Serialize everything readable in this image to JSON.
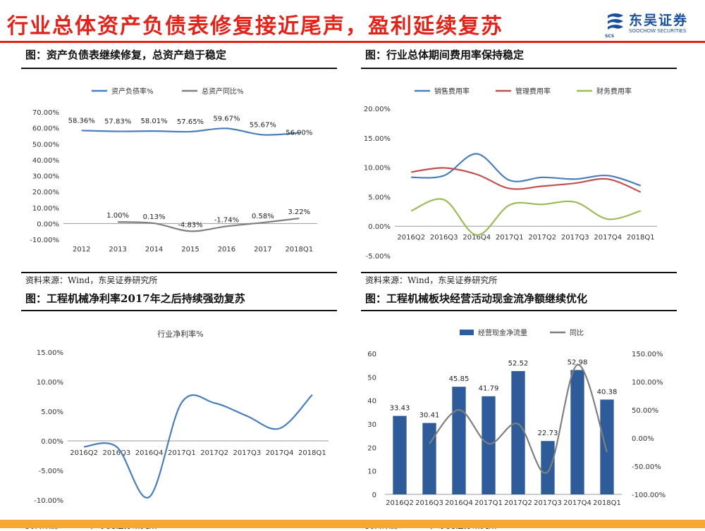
{
  "header": {
    "title": "行业总体资产负债表修复接近尾声，盈利延续复苏",
    "logo_name": "东吴证券",
    "logo_english": "SOOCHOW SECURITIES",
    "logo_mark_text": "SCS"
  },
  "colors": {
    "title_red": "#e2231a",
    "brand_blue": "#1a4f9c",
    "series_blue": "#4a7ebb",
    "series_gray": "#7f7f7f",
    "series_red": "#c0504d",
    "series_green": "#9bbb59",
    "bar_blue": "#2e5b9a",
    "footer_orange": "#f7a833"
  },
  "panels": [
    {
      "title": "图：资产负债表继续修复，总资产趋于稳定",
      "source": "资料来源：Wind，东吴证券研究所"
    },
    {
      "title": "图：行业总体期间费用率保持稳定",
      "source": "资料来源：Wind，东吴证券研究所"
    },
    {
      "title": "图：工程机械净利率2017年之后持续强劲复苏",
      "source": "资料来源：Wind，东吴证券研究所"
    },
    {
      "title": "图：工程机械板块经营活动现金流净额继续优化",
      "source": "资料来源：Wind，东吴证券研究所"
    }
  ],
  "chart_data": [
    {
      "type": "line",
      "categories": [
        "2012",
        "2013",
        "2014",
        "2015",
        "2016",
        "2017",
        "2018Q1"
      ],
      "series": [
        {
          "name": "资产负债率%",
          "values": [
            58.36,
            57.83,
            58.01,
            57.65,
            59.67,
            55.67,
            56.9
          ],
          "labels": [
            "58.36%",
            "57.83%",
            "58.01%",
            "57.65%",
            "59.67%",
            "55.67%",
            "56.90%"
          ]
        },
        {
          "name": "总资产同比%",
          "values": [
            null,
            1.0,
            0.13,
            -4.83,
            -1.74,
            0.58,
            3.22
          ],
          "labels": [
            "",
            "1.00%",
            "0.13%",
            "-4.83%",
            "-1.74%",
            "0.58%",
            "3.22%"
          ]
        }
      ],
      "ylim": [
        -10,
        70
      ],
      "yticks": [
        "-10.00%",
        "0.00%",
        "10.00%",
        "20.00%",
        "30.00%",
        "40.00%",
        "50.00%",
        "60.00%",
        "70.00%"
      ],
      "legend": "top",
      "grid": false
    },
    {
      "type": "line",
      "categories": [
        "2016Q2",
        "2016Q3",
        "2016Q4",
        "2017Q1",
        "2017Q2",
        "2017Q3",
        "2017Q4",
        "2018Q1"
      ],
      "series": [
        {
          "name": "销售费用率",
          "values": [
            8.3,
            8.6,
            12.3,
            7.8,
            8.3,
            8.0,
            8.6,
            6.9
          ]
        },
        {
          "name": "管理费用率",
          "values": [
            9.2,
            9.9,
            8.8,
            6.4,
            6.8,
            7.3,
            8.0,
            5.8
          ]
        },
        {
          "name": "财务费用率",
          "values": [
            2.6,
            4.5,
            -1.5,
            3.6,
            3.7,
            4.1,
            1.2,
            2.6
          ]
        }
      ],
      "ylim": [
        -5,
        20
      ],
      "yticks": [
        "-5.00%",
        "0.00%",
        "5.00%",
        "10.00%",
        "15.00%",
        "20.00%"
      ],
      "legend": "top",
      "grid": false
    },
    {
      "type": "line",
      "title": "行业净利率%",
      "categories": [
        "2016Q2",
        "2016Q3",
        "2016Q4",
        "2017Q1",
        "2017Q2",
        "2017Q3",
        "2017Q4",
        "2018Q1"
      ],
      "series": [
        {
          "values": [
            -1.0,
            -1.0,
            -9.5,
            6.5,
            6.4,
            4.2,
            2.1,
            7.8
          ]
        }
      ],
      "ylim": [
        -10,
        15
      ],
      "yticks": [
        "-10.00%",
        "-5.00%",
        "0.00%",
        "5.00%",
        "10.00%",
        "15.00%"
      ],
      "grid": false
    },
    {
      "type": "bar",
      "categories": [
        "2016Q2",
        "2016Q3",
        "2016Q4",
        "2017Q1",
        "2017Q2",
        "2017Q3",
        "2017Q4",
        "2018Q1"
      ],
      "series": [
        {
          "name": "经营现金净流量",
          "values": [
            33.43,
            30.41,
            45.85,
            41.79,
            52.52,
            22.73,
            52.98,
            40.38
          ],
          "labels": [
            "33.43",
            "30.41",
            "45.85",
            "41.79",
            "52.52",
            "22.73",
            "52.98",
            "40.38"
          ]
        },
        {
          "name": "同比",
          "type": "line",
          "axis": "right",
          "values": [
            null,
            -10,
            50,
            -10,
            25,
            -60,
            130,
            -25
          ]
        }
      ],
      "ylim": [
        0,
        60
      ],
      "yticks": [
        "0",
        "10",
        "20",
        "30",
        "40",
        "50",
        "60"
      ],
      "y2lim": [
        -100,
        150
      ],
      "y2ticks": [
        "-100.00%",
        "-50.00%",
        "0.00%",
        "50.00%",
        "100.00%",
        "150.00%"
      ],
      "legend": "top",
      "grid": false
    }
  ]
}
